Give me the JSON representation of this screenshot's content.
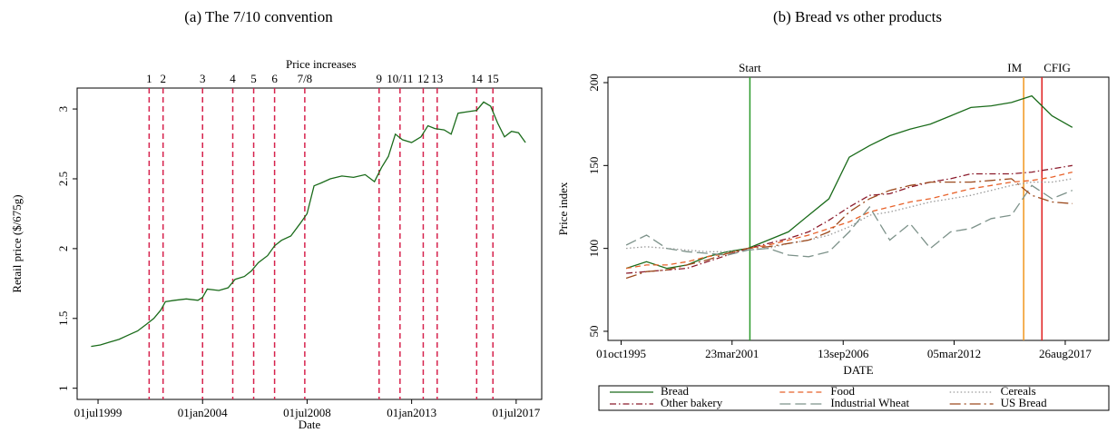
{
  "chart_data": [
    {
      "type": "line",
      "title": "(a) The 7/10 convention",
      "xlabel": "Date",
      "ylabel": "Retail price ($/675g)",
      "annotation": "Price increases",
      "x": [
        1999.2,
        1999.6,
        2000.0,
        2000.4,
        2000.8,
        2001.2,
        2001.6,
        2001.9,
        2002.2,
        2002.4,
        2002.8,
        2003.3,
        2003.8,
        2004.0,
        2004.2,
        2004.7,
        2005.1,
        2005.4,
        2005.8,
        2006.1,
        2006.4,
        2006.8,
        2007.1,
        2007.4,
        2007.8,
        2008.2,
        2008.5,
        2008.8,
        2009.1,
        2009.5,
        2010.0,
        2010.5,
        2011.0,
        2011.4,
        2011.7,
        2012.0,
        2012.3,
        2012.6,
        2013.0,
        2013.4,
        2013.7,
        2014.0,
        2014.4,
        2014.7,
        2015.0,
        2015.4,
        2015.8,
        2016.1,
        2016.4,
        2016.7,
        2017.0,
        2017.3,
        2017.6,
        2017.9
      ],
      "series": [
        {
          "color": "#1a6b1a",
          "dash": "solid",
          "values": [
            1.3,
            1.31,
            1.33,
            1.35,
            1.38,
            1.41,
            1.46,
            1.5,
            1.56,
            1.62,
            1.63,
            1.64,
            1.63,
            1.65,
            1.71,
            1.7,
            1.72,
            1.78,
            1.8,
            1.84,
            1.9,
            1.95,
            2.02,
            2.06,
            2.09,
            2.18,
            2.25,
            2.45,
            2.47,
            2.5,
            2.52,
            2.51,
            2.53,
            2.48,
            2.58,
            2.66,
            2.82,
            2.78,
            2.76,
            2.8,
            2.88,
            2.86,
            2.85,
            2.82,
            2.97,
            2.98,
            2.99,
            3.05,
            3.02,
            2.9,
            2.8,
            2.84,
            2.83,
            2.76
          ]
        }
      ],
      "vlines": [
        {
          "x": 2001.7,
          "label": "1",
          "color": "#d6224d",
          "dash": "dashed"
        },
        {
          "x": 2002.3,
          "label": "2",
          "color": "#d6224d",
          "dash": "dashed"
        },
        {
          "x": 2004.0,
          "label": "3",
          "color": "#d6224d",
          "dash": "dashed"
        },
        {
          "x": 2005.3,
          "label": "4",
          "color": "#d6224d",
          "dash": "dashed"
        },
        {
          "x": 2006.2,
          "label": "5",
          "color": "#d6224d",
          "dash": "dashed"
        },
        {
          "x": 2007.1,
          "label": "6",
          "color": "#d6224d",
          "dash": "dashed"
        },
        {
          "x": 2008.4,
          "label": "7/8",
          "color": "#d6224d",
          "dash": "dashed"
        },
        {
          "x": 2011.6,
          "label": "9",
          "color": "#d6224d",
          "dash": "dashed"
        },
        {
          "x": 2012.5,
          "label": "10/11",
          "color": "#d6224d",
          "dash": "dashed"
        },
        {
          "x": 2013.5,
          "label": "12",
          "color": "#d6224d",
          "dash": "dashed"
        },
        {
          "x": 2014.1,
          "label": "13",
          "color": "#d6224d",
          "dash": "dashed"
        },
        {
          "x": 2015.8,
          "label": "14",
          "color": "#d6224d",
          "dash": "dashed"
        },
        {
          "x": 2016.5,
          "label": "15",
          "color": "#d6224d",
          "dash": "dashed"
        }
      ],
      "xlim": [
        1998.6,
        2018.6
      ],
      "xticks": [
        {
          "value": 1999.5,
          "label": "01jul1999"
        },
        {
          "value": 2004.0,
          "label": "01jan2004"
        },
        {
          "value": 2008.5,
          "label": "01jul2008"
        },
        {
          "value": 2013.0,
          "label": "01jan2013"
        },
        {
          "value": 2017.5,
          "label": "01jul2017"
        }
      ],
      "ylim": [
        0.92,
        3.15
      ],
      "yticks": [
        1,
        1.5,
        2,
        2.5,
        3
      ]
    },
    {
      "type": "line",
      "title": "(b) Bread vs other products",
      "xlabel": "DATE",
      "ylabel": "Price index",
      "x": [
        1996,
        1997,
        1998,
        1999,
        2000,
        2001,
        2002,
        2003,
        2004,
        2005,
        2006,
        2007,
        2008,
        2009,
        2010,
        2011,
        2012,
        2013,
        2014,
        2015,
        2016,
        2017,
        2018
      ],
      "series": [
        {
          "name": "Bread",
          "color": "#1a6b1a",
          "dash": "solid",
          "values": [
            88,
            92,
            88,
            90,
            95,
            98,
            100,
            105,
            110,
            120,
            130,
            155,
            162,
            168,
            172,
            175,
            180,
            185,
            186,
            188,
            192,
            180,
            173
          ]
        },
        {
          "name": "Food",
          "color": "#e8622a",
          "dash": "dashed",
          "values": [
            88,
            90,
            90,
            92,
            95,
            97,
            100,
            102,
            105,
            108,
            112,
            116,
            122,
            125,
            128,
            130,
            133,
            136,
            138,
            140,
            141,
            143,
            146
          ]
        },
        {
          "name": "Cereals",
          "color": "#9a9a9a",
          "dash": "dotted",
          "values": [
            100,
            101,
            100,
            99,
            98,
            98,
            99,
            100,
            103,
            105,
            108,
            113,
            120,
            122,
            125,
            128,
            130,
            132,
            135,
            138,
            140,
            140,
            142
          ]
        },
        {
          "name": "Other bakery",
          "color": "#8b1a2b",
          "dash": "dashdot",
          "values": [
            85,
            86,
            87,
            88,
            92,
            96,
            100,
            103,
            106,
            110,
            117,
            125,
            132,
            133,
            137,
            140,
            142,
            145,
            145,
            145,
            146,
            148,
            150
          ]
        },
        {
          "name": "Industrial Wheat",
          "color": "#7d928a",
          "dash": "longdash",
          "values": [
            102,
            108,
            100,
            98,
            97,
            96,
            99,
            100,
            96,
            95,
            98,
            110,
            125,
            105,
            115,
            100,
            110,
            112,
            118,
            120,
            138,
            130,
            135
          ]
        },
        {
          "name": "US Bread",
          "color": "#9c4a1e",
          "dash": "longdashdot",
          "values": [
            82,
            86,
            87,
            90,
            93,
            97,
            100,
            101,
            103,
            105,
            110,
            122,
            130,
            135,
            138,
            140,
            140,
            140,
            141,
            142,
            132,
            128,
            127
          ]
        }
      ],
      "vlines": [
        {
          "x": 2002.1,
          "label": "Start",
          "color": "#2a9a2a",
          "dash": "solid"
        },
        {
          "x": 2015.6,
          "label": "IM",
          "color": "#f0961e",
          "dash": "solid"
        },
        {
          "x": 2016.5,
          "label": "CFIG",
          "color": "#e02020",
          "dash": "solid"
        }
      ],
      "xlim": [
        1995.1,
        2019.8
      ],
      "xticks": [
        {
          "value": 1995.75,
          "label": "01oct1995"
        },
        {
          "value": 2001.22,
          "label": "23mar2001"
        },
        {
          "value": 2006.7,
          "label": "13sep2006"
        },
        {
          "value": 2012.17,
          "label": "05mar2012"
        },
        {
          "value": 2017.65,
          "label": "26aug2017"
        }
      ],
      "ylim": [
        44.5,
        203.3
      ],
      "yticks": [
        50,
        100,
        150,
        200
      ],
      "legend": "bottom"
    }
  ]
}
